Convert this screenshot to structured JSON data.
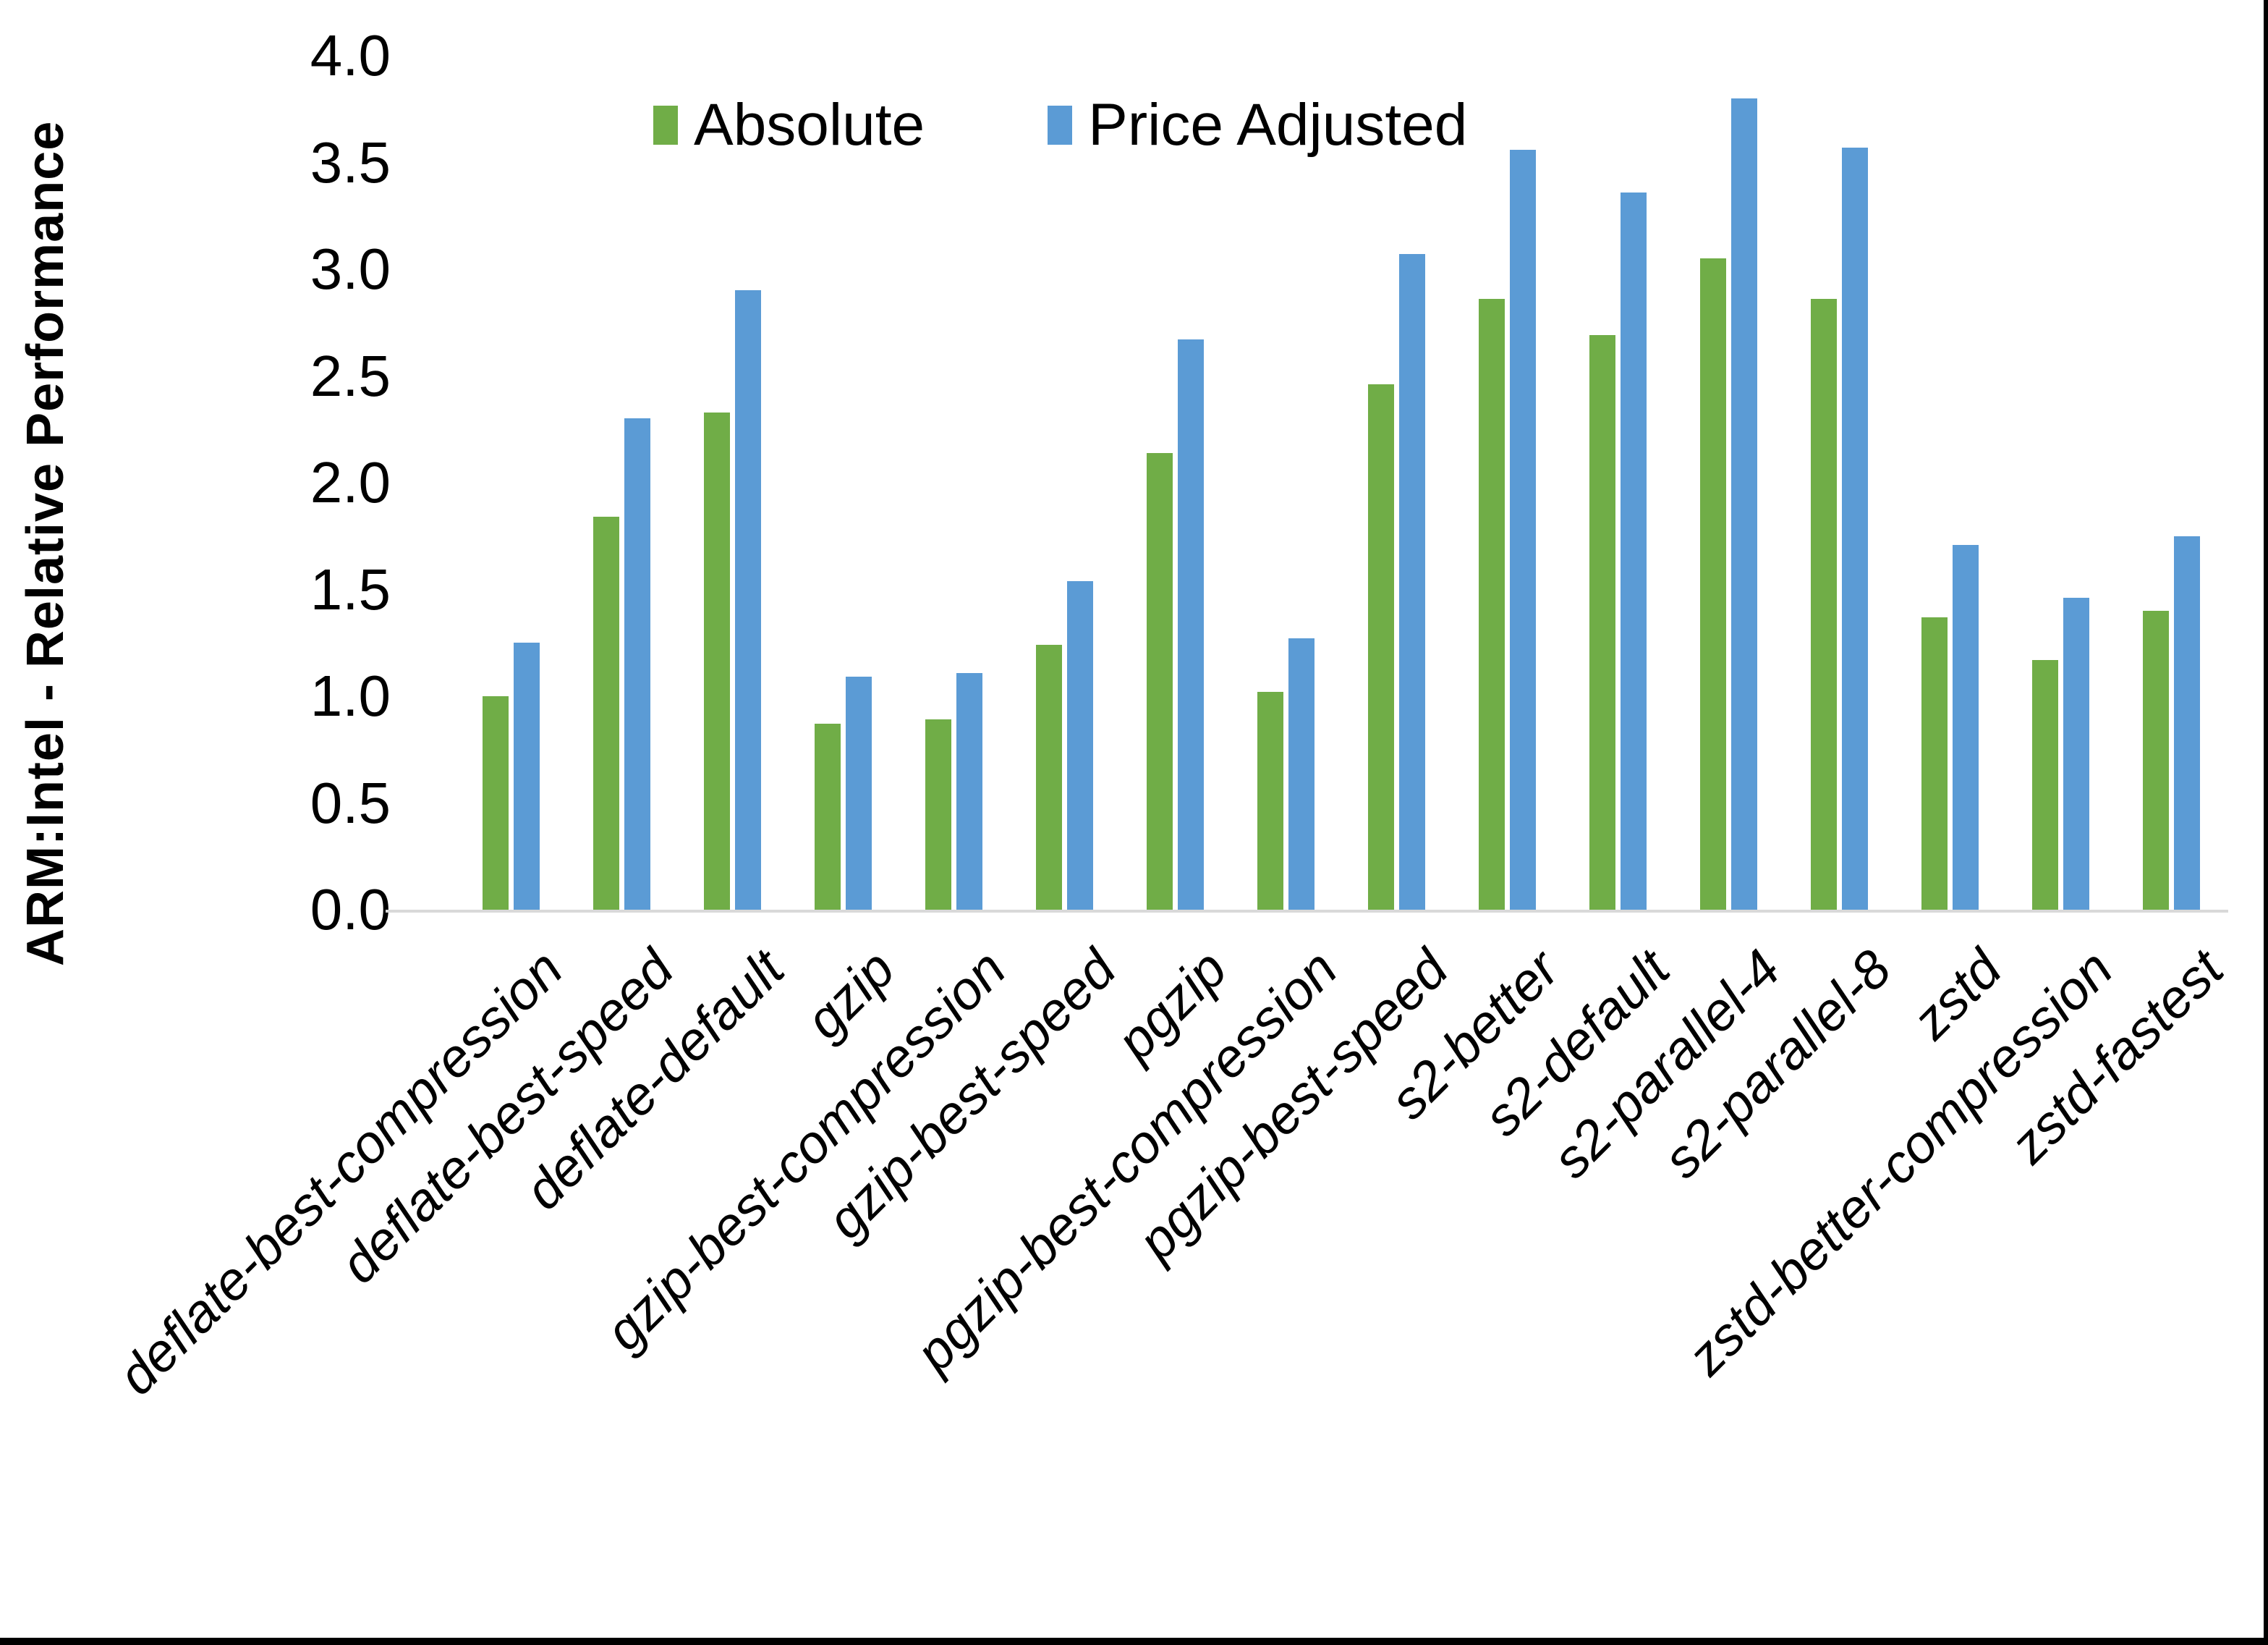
{
  "chart_data": {
    "type": "bar",
    "title": "",
    "ylabel": "ARM:Intel - Relative Performance",
    "xlabel": "",
    "ylim": [
      0.0,
      4.0
    ],
    "ytick_step": 0.5,
    "ytick_labels": [
      "0.0",
      "0.5",
      "1.0",
      "1.5",
      "2.0",
      "2.5",
      "3.0",
      "3.5",
      "4.0"
    ],
    "grid": "off",
    "legend_position": "top-center",
    "categories": [
      "deflate-best-compression",
      "deflate-best-speed",
      "deflate-default",
      "gzip",
      "gzip-best-compression",
      "gzip-best-speed",
      "pgzip",
      "pgzip-best-compression",
      "pgzip-best-speed",
      "s2-better",
      "s2-default",
      "s2-parallel-4",
      "s2-parallel-8",
      "zstd",
      "zstd-better-compression",
      "zstd-fastest"
    ],
    "series": [
      {
        "name": "Absolute",
        "color": "#70AD47",
        "values": [
          1.0,
          1.84,
          2.33,
          0.87,
          0.89,
          1.24,
          2.14,
          1.02,
          2.46,
          2.86,
          2.69,
          3.05,
          2.86,
          1.37,
          1.17,
          1.4
        ]
      },
      {
        "name": "Price Adjusted",
        "color": "#5B9BD5",
        "values": [
          1.25,
          2.3,
          2.9,
          1.09,
          1.11,
          1.54,
          2.67,
          1.27,
          3.07,
          3.56,
          3.36,
          3.8,
          3.57,
          1.71,
          1.46,
          1.75
        ]
      }
    ]
  },
  "colors": {
    "axis_line": "#d9d9d9",
    "background": "#ffffff",
    "text": "#000000",
    "frame": "#000000"
  },
  "legend": {
    "absolute_label": "Absolute",
    "price_adjusted_label": "Price Adjusted"
  }
}
